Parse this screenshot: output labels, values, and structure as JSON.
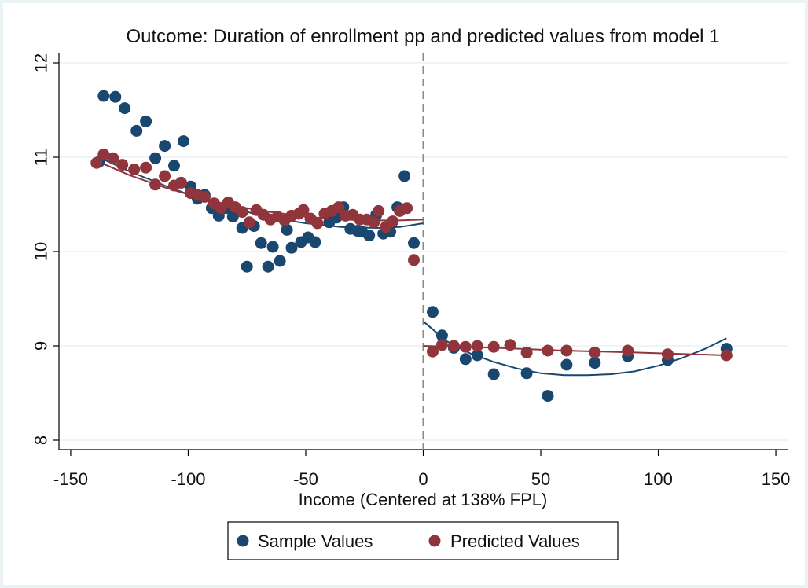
{
  "chart_data": {
    "type": "scatter",
    "title": "Outcome: Duration of enrollment pp and predicted values from model 1",
    "xlabel": "Income (Centered at 138% FPL)",
    "ylabel": "",
    "xlim": [
      -155,
      155
    ],
    "ylim": [
      7.9,
      12.1
    ],
    "x_ticks": [
      -150,
      -100,
      -50,
      0,
      50,
      100,
      150
    ],
    "x_tick_labels": [
      "-150",
      "-100",
      "-50",
      "0",
      "50",
      "100",
      "150"
    ],
    "y_ticks": [
      8,
      9,
      10,
      11,
      12
    ],
    "y_tick_labels": [
      "8",
      "9",
      "10",
      "11",
      "12"
    ],
    "grid": "horizontal",
    "cutoff_line_x": 0,
    "legend": {
      "position": "bottom",
      "entries": [
        "Sample Values",
        "Predicted Values"
      ]
    },
    "colors": {
      "sample": "#1a476f",
      "predicted": "#90353b",
      "cutoff": "#8a8a8a",
      "grid": "#eaf2f3"
    },
    "series": [
      {
        "name": "Sample Values",
        "kind": "points",
        "points": [
          [
            -138,
            10.95
          ],
          [
            -136,
            11.65
          ],
          [
            -131,
            11.64
          ],
          [
            -127,
            11.52
          ],
          [
            -122,
            11.28
          ],
          [
            -118,
            11.38
          ],
          [
            -114,
            10.99
          ],
          [
            -110,
            11.12
          ],
          [
            -106,
            10.91
          ],
          [
            -102,
            11.17
          ],
          [
            -99,
            10.69
          ],
          [
            -96,
            10.56
          ],
          [
            -93,
            10.6
          ],
          [
            -90,
            10.46
          ],
          [
            -87,
            10.38
          ],
          [
            -84,
            10.46
          ],
          [
            -81,
            10.37
          ],
          [
            -77,
            10.25
          ],
          [
            -75,
            9.84
          ],
          [
            -72,
            10.27
          ],
          [
            -69,
            10.09
          ],
          [
            -66,
            9.84
          ],
          [
            -64,
            10.05
          ],
          [
            -61,
            9.9
          ],
          [
            -58,
            10.23
          ],
          [
            -56,
            10.04
          ],
          [
            -52,
            10.1
          ],
          [
            -49,
            10.15
          ],
          [
            -46,
            10.1
          ],
          [
            -40,
            10.31
          ],
          [
            -37,
            10.36
          ],
          [
            -34,
            10.47
          ],
          [
            -31,
            10.24
          ],
          [
            -28,
            10.22
          ],
          [
            -26,
            10.21
          ],
          [
            -23,
            10.17
          ],
          [
            -20,
            10.39
          ],
          [
            -17,
            10.19
          ],
          [
            -14,
            10.21
          ],
          [
            -11,
            10.47
          ],
          [
            -8,
            10.8
          ],
          [
            -4,
            10.09
          ],
          [
            4,
            9.36
          ],
          [
            8,
            9.11
          ],
          [
            13,
            8.98
          ],
          [
            18,
            8.86
          ],
          [
            23,
            8.9
          ],
          [
            30,
            8.7
          ],
          [
            44,
            8.71
          ],
          [
            53,
            8.47
          ],
          [
            61,
            8.8
          ],
          [
            73,
            8.82
          ],
          [
            87,
            8.89
          ],
          [
            104,
            8.85
          ],
          [
            129,
            8.97
          ]
        ]
      },
      {
        "name": "Predicted Values",
        "kind": "points",
        "points": [
          [
            -139,
            10.94
          ],
          [
            -136,
            11.03
          ],
          [
            -132,
            10.99
          ],
          [
            -128,
            10.92
          ],
          [
            -123,
            10.87
          ],
          [
            -118,
            10.89
          ],
          [
            -114,
            10.71
          ],
          [
            -110,
            10.8
          ],
          [
            -106,
            10.7
          ],
          [
            -103,
            10.73
          ],
          [
            -99,
            10.62
          ],
          [
            -96,
            10.6
          ],
          [
            -93,
            10.58
          ],
          [
            -89,
            10.51
          ],
          [
            -86,
            10.46
          ],
          [
            -83,
            10.52
          ],
          [
            -80,
            10.47
          ],
          [
            -77,
            10.42
          ],
          [
            -74,
            10.31
          ],
          [
            -71,
            10.44
          ],
          [
            -68,
            10.39
          ],
          [
            -65,
            10.34
          ],
          [
            -62,
            10.37
          ],
          [
            -59,
            10.33
          ],
          [
            -56,
            10.38
          ],
          [
            -53,
            10.4
          ],
          [
            -51,
            10.44
          ],
          [
            -48,
            10.35
          ],
          [
            -45,
            10.3
          ],
          [
            -42,
            10.4
          ],
          [
            -39,
            10.43
          ],
          [
            -36,
            10.47
          ],
          [
            -33,
            10.38
          ],
          [
            -30,
            10.39
          ],
          [
            -27,
            10.34
          ],
          [
            -24,
            10.34
          ],
          [
            -21,
            10.31
          ],
          [
            -19,
            10.43
          ],
          [
            -16,
            10.26
          ],
          [
            -13,
            10.32
          ],
          [
            -10,
            10.43
          ],
          [
            -7,
            10.46
          ],
          [
            -4,
            9.91
          ],
          [
            4,
            8.94
          ],
          [
            8,
            9.01
          ],
          [
            13,
            9.0
          ],
          [
            18,
            8.99
          ],
          [
            23,
            9.0
          ],
          [
            30,
            8.99
          ],
          [
            37,
            9.01
          ],
          [
            44,
            8.93
          ],
          [
            53,
            8.95
          ],
          [
            61,
            8.95
          ],
          [
            73,
            8.93
          ],
          [
            87,
            8.95
          ],
          [
            104,
            8.91
          ],
          [
            129,
            8.9
          ]
        ]
      },
      {
        "name": "Sample fit",
        "kind": "line",
        "segments": [
          [
            [
              -138,
              11.0
            ],
            [
              -125,
              10.85
            ],
            [
              -110,
              10.7
            ],
            [
              -95,
              10.56
            ],
            [
              -80,
              10.45
            ],
            [
              -65,
              10.36
            ],
            [
              -50,
              10.3
            ],
            [
              -35,
              10.26
            ],
            [
              -20,
              10.25
            ],
            [
              -10,
              10.26
            ],
            [
              0,
              10.3
            ]
          ],
          [
            [
              0,
              9.26
            ],
            [
              10,
              9.05
            ],
            [
              20,
              8.92
            ],
            [
              30,
              8.83
            ],
            [
              40,
              8.76
            ],
            [
              50,
              8.71
            ],
            [
              60,
              8.69
            ],
            [
              70,
              8.69
            ],
            [
              80,
              8.7
            ],
            [
              90,
              8.73
            ],
            [
              100,
              8.79
            ],
            [
              110,
              8.87
            ],
            [
              120,
              8.97
            ],
            [
              129,
              9.08
            ]
          ]
        ]
      },
      {
        "name": "Predicted fit",
        "kind": "line",
        "segments": [
          [
            [
              -138,
              10.95
            ],
            [
              -125,
              10.81
            ],
            [
              -110,
              10.68
            ],
            [
              -95,
              10.57
            ],
            [
              -80,
              10.48
            ],
            [
              -65,
              10.42
            ],
            [
              -50,
              10.37
            ],
            [
              -35,
              10.34
            ],
            [
              -20,
              10.33
            ],
            [
              -10,
              10.33
            ],
            [
              0,
              10.34
            ]
          ],
          [
            [
              0,
              9.0
            ],
            [
              30,
              8.98
            ],
            [
              60,
              8.95
            ],
            [
              90,
              8.93
            ],
            [
              129,
              8.9
            ]
          ]
        ]
      }
    ]
  }
}
